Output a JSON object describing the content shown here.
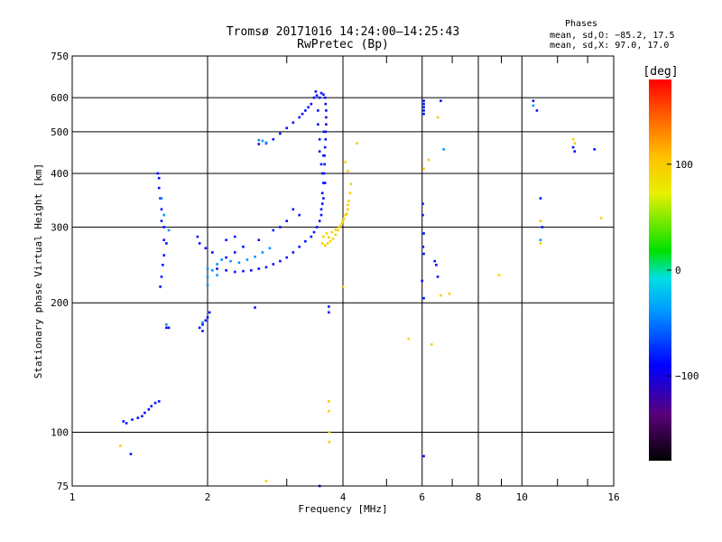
{
  "chart_data": {
    "type": "scatter",
    "title": "Tromsø 20171016 14:24:00–14:25:43",
    "subtitle": "RwPretec (Bp)",
    "xlabel": "Frequency [MHz]",
    "ylabel": "Stationary phase Virtual Height [km]",
    "x_scale": "log",
    "y_scale": "log",
    "xlim": [
      1,
      16
    ],
    "ylim": [
      75,
      750
    ],
    "x_ticks": [
      1,
      2,
      4,
      6,
      8,
      10,
      16
    ],
    "x_tick_labels": [
      "1",
      "2",
      "4",
      "6",
      "8",
      "10",
      "16"
    ],
    "x_minor": [
      3,
      5,
      7,
      9,
      12,
      14
    ],
    "y_ticks": [
      75,
      100,
      200,
      300,
      400,
      500,
      600,
      750
    ],
    "y_tick_labels": [
      "75",
      "100",
      "200",
      "300",
      "400",
      "500",
      "600",
      "750"
    ],
    "grid": true,
    "phase_stats": {
      "title": "Phases",
      "line_o": "mean, sd,O: −85.2, 17.5",
      "line_x": "mean, sd,X:  97.0, 17.0"
    },
    "colorbar": {
      "label": "[deg]",
      "range": [
        -180,
        180
      ],
      "ticks": [
        100,
        0,
        -100
      ],
      "tick_labels": [
        "100",
        "0",
        "−100"
      ]
    },
    "series": [
      {
        "name": "O",
        "phase": -85,
        "points": [
          [
            1.3,
            106
          ],
          [
            1.32,
            105
          ],
          [
            1.36,
            107
          ],
          [
            1.4,
            108
          ],
          [
            1.43,
            109
          ],
          [
            1.45,
            111
          ],
          [
            1.48,
            113
          ],
          [
            1.5,
            115
          ],
          [
            1.53,
            117
          ],
          [
            1.56,
            118
          ],
          [
            1.35,
            89
          ],
          [
            1.55,
            400
          ],
          [
            1.56,
            390
          ],
          [
            1.56,
            370
          ],
          [
            1.57,
            350
          ],
          [
            1.58,
            330
          ],
          [
            1.58,
            310
          ],
          [
            1.6,
            300
          ],
          [
            1.6,
            280
          ],
          [
            1.62,
            275
          ],
          [
            1.6,
            258
          ],
          [
            1.59,
            245
          ],
          [
            1.58,
            230
          ],
          [
            1.57,
            218
          ],
          [
            1.62,
            175
          ],
          [
            1.64,
            175
          ],
          [
            1.92,
            175
          ],
          [
            1.95,
            178
          ],
          [
            1.98,
            182
          ],
          [
            2.0,
            185
          ],
          [
            2.02,
            190
          ],
          [
            1.95,
            172
          ],
          [
            1.9,
            285
          ],
          [
            1.92,
            275
          ],
          [
            1.98,
            268
          ],
          [
            2.05,
            262
          ],
          [
            2.1,
            240
          ],
          [
            2.2,
            238
          ],
          [
            2.3,
            236
          ],
          [
            2.4,
            237
          ],
          [
            2.5,
            238
          ],
          [
            2.6,
            240
          ],
          [
            2.7,
            242
          ],
          [
            2.8,
            246
          ],
          [
            2.9,
            250
          ],
          [
            3.0,
            255
          ],
          [
            3.1,
            262
          ],
          [
            3.2,
            270
          ],
          [
            3.3,
            278
          ],
          [
            3.4,
            285
          ],
          [
            3.45,
            292
          ],
          [
            3.5,
            300
          ],
          [
            3.55,
            310
          ],
          [
            3.58,
            320
          ],
          [
            3.6,
            340
          ],
          [
            3.6,
            360
          ],
          [
            3.62,
            380
          ],
          [
            3.63,
            400
          ],
          [
            3.64,
            420
          ],
          [
            3.64,
            440
          ],
          [
            3.65,
            460
          ],
          [
            3.66,
            480
          ],
          [
            3.66,
            500
          ],
          [
            3.67,
            520
          ],
          [
            3.67,
            540
          ],
          [
            3.67,
            560
          ],
          [
            3.66,
            580
          ],
          [
            3.65,
            600
          ],
          [
            3.62,
            610
          ],
          [
            3.58,
            615
          ],
          [
            3.55,
            600
          ],
          [
            3.52,
            560
          ],
          [
            3.52,
            520
          ],
          [
            3.55,
            480
          ],
          [
            3.55,
            450
          ],
          [
            3.58,
            420
          ],
          [
            3.6,
            400
          ],
          [
            3.62,
            440
          ],
          [
            3.63,
            500
          ],
          [
            3.65,
            380
          ],
          [
            3.62,
            350
          ],
          [
            3.58,
            330
          ],
          [
            3.5,
            607
          ],
          [
            3.48,
            620
          ],
          [
            3.45,
            600
          ],
          [
            3.4,
            580
          ],
          [
            3.35,
            570
          ],
          [
            3.3,
            560
          ],
          [
            3.25,
            550
          ],
          [
            3.2,
            540
          ],
          [
            3.1,
            525
          ],
          [
            3.0,
            510
          ],
          [
            2.9,
            495
          ],
          [
            2.8,
            480
          ],
          [
            2.7,
            470
          ],
          [
            2.6,
            468
          ],
          [
            3.1,
            330
          ],
          [
            3.2,
            320
          ],
          [
            3.0,
            310
          ],
          [
            2.9,
            300
          ],
          [
            2.8,
            295
          ],
          [
            2.6,
            280
          ],
          [
            2.4,
            270
          ],
          [
            2.3,
            262
          ],
          [
            2.2,
            255
          ],
          [
            2.2,
            280
          ],
          [
            2.3,
            285
          ],
          [
            3.72,
            190
          ],
          [
            3.72,
            196
          ],
          [
            3.55,
            75
          ],
          [
            6.05,
            590
          ],
          [
            6.05,
            580
          ],
          [
            6.05,
            570
          ],
          [
            6.05,
            560
          ],
          [
            6.05,
            550
          ],
          [
            6.02,
            340
          ],
          [
            6.02,
            320
          ],
          [
            6.05,
            290
          ],
          [
            6.03,
            270
          ],
          [
            6.05,
            260
          ],
          [
            6.0,
            225
          ],
          [
            6.05,
            205
          ],
          [
            6.05,
            88
          ],
          [
            6.4,
            250
          ],
          [
            6.45,
            245
          ],
          [
            6.5,
            230
          ],
          [
            6.6,
            590
          ],
          [
            10.6,
            590
          ],
          [
            10.8,
            560
          ],
          [
            11.0,
            350
          ],
          [
            11.1,
            300
          ],
          [
            13.0,
            460
          ],
          [
            13.1,
            450
          ],
          [
            14.5,
            455
          ],
          [
            2.55,
            195
          ]
        ]
      },
      {
        "name": "X",
        "phase": 97,
        "points": [
          [
            3.6,
            275
          ],
          [
            3.65,
            272
          ],
          [
            3.7,
            275
          ],
          [
            3.75,
            278
          ],
          [
            3.8,
            282
          ],
          [
            3.85,
            288
          ],
          [
            3.9,
            295
          ],
          [
            3.95,
            302
          ],
          [
            4.0,
            310
          ],
          [
            4.05,
            320
          ],
          [
            4.1,
            330
          ],
          [
            4.12,
            345
          ],
          [
            4.15,
            360
          ],
          [
            4.17,
            378
          ],
          [
            3.62,
            285
          ],
          [
            3.68,
            290
          ],
          [
            3.72,
            284
          ],
          [
            3.78,
            292
          ],
          [
            3.85,
            296
          ],
          [
            3.92,
            300
          ],
          [
            3.98,
            306
          ],
          [
            4.02,
            314
          ],
          [
            4.08,
            322
          ],
          [
            4.1,
            338
          ],
          [
            4.3,
            470
          ],
          [
            4.05,
            425
          ],
          [
            4.1,
            405
          ],
          [
            3.72,
            118
          ],
          [
            3.72,
            112
          ],
          [
            3.73,
            100
          ],
          [
            3.73,
            95
          ],
          [
            4.0,
            218
          ],
          [
            5.6,
            165
          ],
          [
            6.05,
            410
          ],
          [
            6.2,
            430
          ],
          [
            6.3,
            160
          ],
          [
            6.5,
            540
          ],
          [
            6.6,
            208
          ],
          [
            6.9,
            210
          ],
          [
            8.9,
            232
          ],
          [
            11.0,
            310
          ],
          [
            11.0,
            275
          ],
          [
            13.0,
            480
          ],
          [
            13.1,
            470
          ],
          [
            15.0,
            315
          ],
          [
            1.28,
            93
          ],
          [
            2.7,
            77
          ]
        ]
      },
      {
        "name": "cyan",
        "phase": -40,
        "points": [
          [
            1.58,
            350
          ],
          [
            1.6,
            320
          ],
          [
            1.64,
            295
          ],
          [
            2.0,
            240
          ],
          [
            2.05,
            238
          ],
          [
            2.1,
            246
          ],
          [
            2.15,
            252
          ],
          [
            2.25,
            250
          ],
          [
            2.35,
            248
          ],
          [
            2.45,
            252
          ],
          [
            2.55,
            256
          ],
          [
            2.65,
            262
          ],
          [
            2.75,
            268
          ],
          [
            2.6,
            478
          ],
          [
            2.65,
            476
          ],
          [
            2.7,
            472
          ],
          [
            1.62,
            178
          ],
          [
            1.95,
            180
          ],
          [
            2.0,
            230
          ],
          [
            2.1,
            232
          ],
          [
            2.0,
            220
          ],
          [
            6.7,
            455
          ],
          [
            10.6,
            575
          ],
          [
            11.0,
            280
          ]
        ]
      }
    ]
  }
}
